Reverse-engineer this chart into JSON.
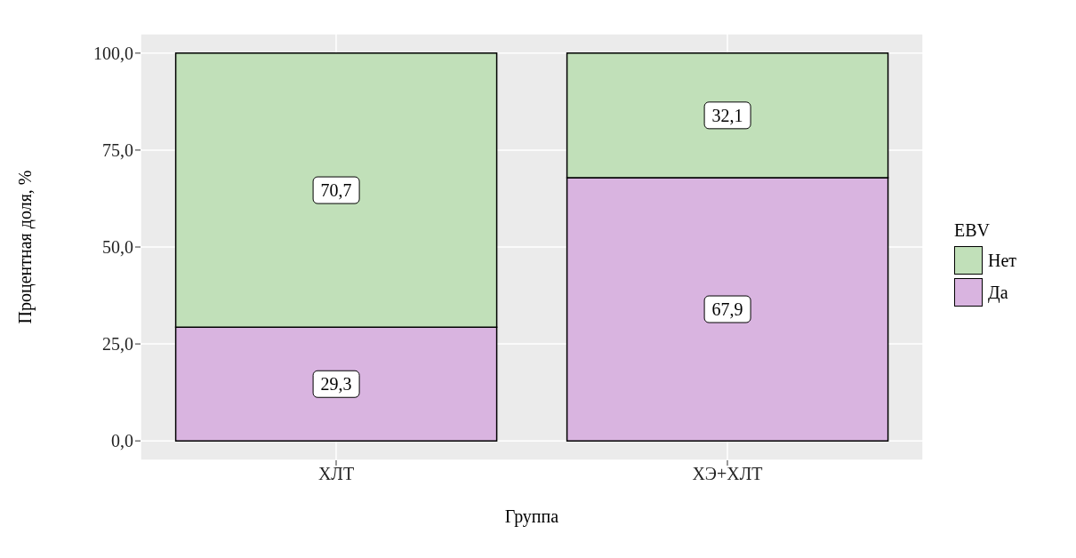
{
  "chart_data": {
    "type": "bar",
    "stacked": true,
    "xlabel": "Группа",
    "ylabel": "Процентная доля, %",
    "legend_title": "EBV",
    "legend": "right",
    "grid": true,
    "categories": [
      "ХЛТ",
      "ХЭ+ХЛТ"
    ],
    "series": [
      {
        "name": "Да",
        "color": "#d9b4e0",
        "values": [
          29.3,
          67.9
        ],
        "value_labels": [
          "29,3",
          "67,9"
        ]
      },
      {
        "name": "Нет",
        "color": "#c1e0b9",
        "values": [
          70.7,
          32.1
        ],
        "value_labels": [
          "70,7",
          "32,1"
        ]
      }
    ],
    "ylim": [
      -5,
      105
    ],
    "yticks": [
      {
        "value": 0,
        "label": "0,0"
      },
      {
        "value": 25,
        "label": "25,0"
      },
      {
        "value": 50,
        "label": "50,0"
      },
      {
        "value": 75,
        "label": "75,0"
      },
      {
        "value": 100,
        "label": "100,0"
      }
    ]
  }
}
